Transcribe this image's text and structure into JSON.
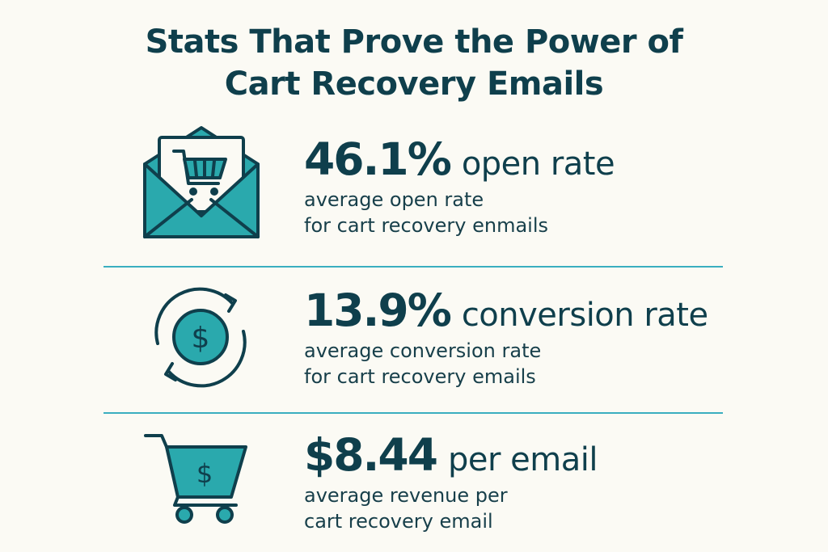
{
  "title": {
    "line1": "Stats That Prove the Power of",
    "line2": "Cart Recovery Emails"
  },
  "colors": {
    "dark": "#0f3f4c",
    "teal": "#2aa9ad",
    "divider": "#3aaec0",
    "background": "#fbfaf4"
  },
  "stats": [
    {
      "icon": "envelope-cart-icon",
      "value": "46.1%",
      "label": "open rate",
      "description_line1": "average open rate",
      "description_line2": "for cart recovery enmails"
    },
    {
      "icon": "dollar-cycle-icon",
      "value": "13.9%",
      "label": "conversion rate",
      "description_line1": "average conversion rate",
      "description_line2": "for cart recovery emails"
    },
    {
      "icon": "dollar-cart-icon",
      "value": "$8.44",
      "label": "per email",
      "description_line1": "average revenue per",
      "description_line2": "cart recovery email"
    }
  ]
}
